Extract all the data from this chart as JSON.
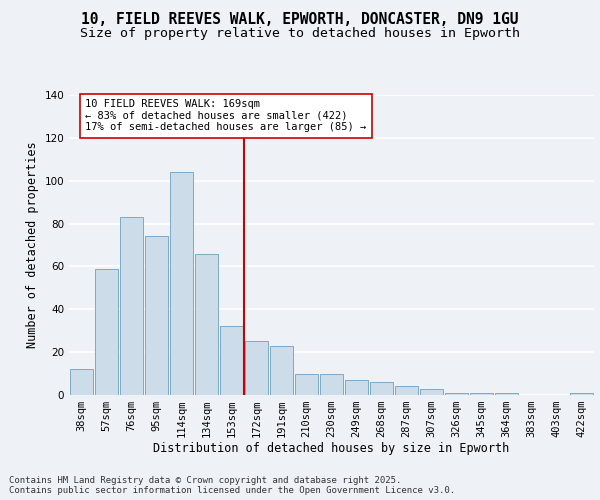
{
  "title1": "10, FIELD REEVES WALK, EPWORTH, DONCASTER, DN9 1GU",
  "title2": "Size of property relative to detached houses in Epworth",
  "xlabel": "Distribution of detached houses by size in Epworth",
  "ylabel": "Number of detached properties",
  "categories": [
    "38sqm",
    "57sqm",
    "76sqm",
    "95sqm",
    "114sqm",
    "134sqm",
    "153sqm",
    "172sqm",
    "191sqm",
    "210sqm",
    "230sqm",
    "249sqm",
    "268sqm",
    "287sqm",
    "307sqm",
    "326sqm",
    "345sqm",
    "364sqm",
    "383sqm",
    "403sqm",
    "422sqm"
  ],
  "values": [
    12,
    59,
    83,
    74,
    104,
    66,
    32,
    25,
    23,
    10,
    10,
    7,
    6,
    4,
    3,
    1,
    1,
    1,
    0,
    0,
    1
  ],
  "bar_color": "#ccdce8",
  "bar_edge_color": "#7aaac8",
  "ref_line_color": "#cc0000",
  "annotation_text": "10 FIELD REEVES WALK: 169sqm\n← 83% of detached houses are smaller (422)\n17% of semi-detached houses are larger (85) →",
  "annotation_box_facecolor": "#ffffff",
  "annotation_box_edgecolor": "#cc0000",
  "ylim": [
    0,
    140
  ],
  "yticks": [
    0,
    20,
    40,
    60,
    80,
    100,
    120,
    140
  ],
  "footer": "Contains HM Land Registry data © Crown copyright and database right 2025.\nContains public sector information licensed under the Open Government Licence v3.0.",
  "background_color": "#eef2f7",
  "grid_color": "#ffffff",
  "title1_fontsize": 10.5,
  "title2_fontsize": 9.5,
  "axis_label_fontsize": 8.5,
  "tick_fontsize": 7.5,
  "annotation_fontsize": 7.5,
  "footer_fontsize": 6.5
}
